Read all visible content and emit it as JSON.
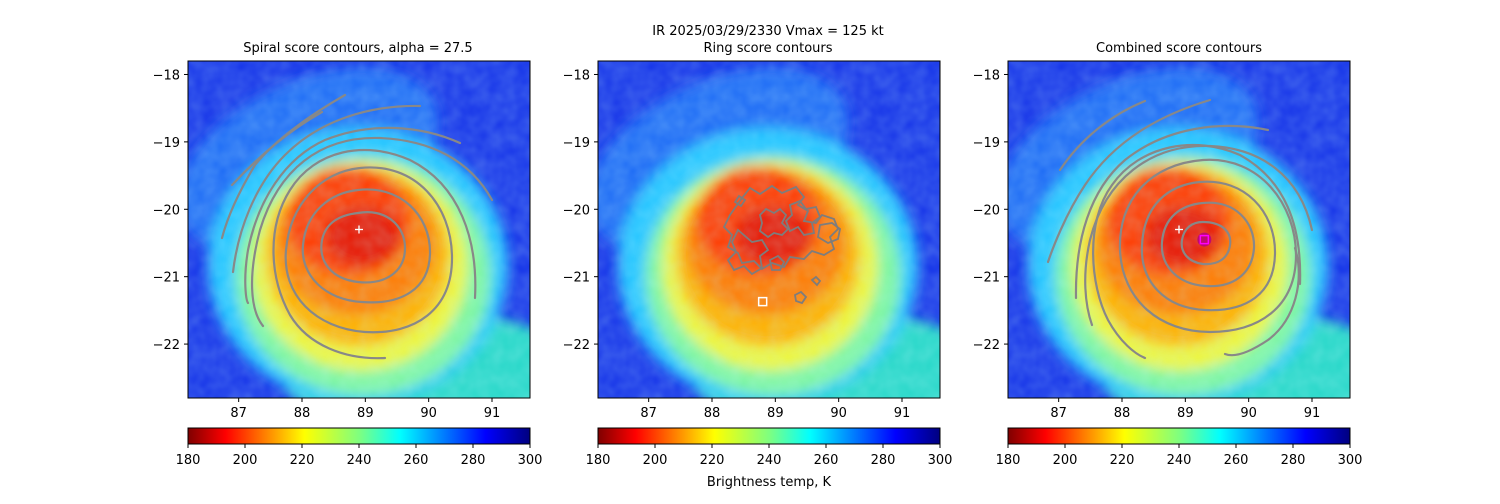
{
  "figure": {
    "suptitle": "IR  2025/03/29/2330    Vmax = 125 kt",
    "colorbar_label": "Brightness temp, K"
  },
  "colors": {
    "contour": "#888888",
    "marker_white": "#ffffff",
    "marker_magenta": "#ff00ff"
  },
  "chart_data": [
    {
      "type": "heatmap",
      "title": "Spiral score contours, alpha = 27.5",
      "colormap": "jet_r",
      "xlim": [
        86.2,
        91.6
      ],
      "ylim": [
        -22.8,
        -17.8
      ],
      "xticks": [
        87,
        88,
        89,
        90,
        91
      ],
      "yticks": [
        -18,
        -19,
        -20,
        -21,
        -22
      ],
      "xtick_labels": [
        "87",
        "88",
        "89",
        "90",
        "91"
      ],
      "ytick_labels": [
        "−18",
        "−19",
        "−20",
        "−21",
        "−22"
      ],
      "colorbar": {
        "min": 180,
        "max": 300,
        "ticks": [
          180,
          200,
          220,
          240,
          260,
          280,
          300
        ],
        "tick_labels": [
          "180",
          "200",
          "220",
          "240",
          "260",
          "280",
          "300"
        ]
      },
      "markers": [
        {
          "kind": "plus",
          "lon": 88.9,
          "lat": -20.3,
          "color": "white"
        }
      ]
    },
    {
      "type": "heatmap",
      "title": "Ring score contours",
      "colormap": "jet_r",
      "xlim": [
        86.2,
        91.6
      ],
      "ylim": [
        -22.8,
        -17.8
      ],
      "xticks": [
        87,
        88,
        89,
        90,
        91
      ],
      "yticks": [
        -18,
        -19,
        -20,
        -21,
        -22
      ],
      "xtick_labels": [
        "87",
        "88",
        "89",
        "90",
        "91"
      ],
      "ytick_labels": [
        "−18",
        "−19",
        "−20",
        "−21",
        "−22"
      ],
      "colorbar": {
        "min": 180,
        "max": 300,
        "ticks": [
          180,
          200,
          220,
          240,
          260,
          280,
          300
        ],
        "tick_labels": [
          "180",
          "200",
          "220",
          "240",
          "260",
          "280",
          "300"
        ]
      },
      "markers": [
        {
          "kind": "square",
          "lon": 88.8,
          "lat": -21.37,
          "color": "white"
        }
      ]
    },
    {
      "type": "heatmap",
      "title": "Combined score contours",
      "colormap": "jet_r",
      "xlim": [
        86.2,
        91.6
      ],
      "ylim": [
        -22.8,
        -17.8
      ],
      "xticks": [
        87,
        88,
        89,
        90,
        91
      ],
      "yticks": [
        -18,
        -19,
        -20,
        -21,
        -22
      ],
      "xtick_labels": [
        "87",
        "88",
        "89",
        "90",
        "91"
      ],
      "ytick_labels": [
        "−18",
        "−19",
        "−20",
        "−21",
        "−22"
      ],
      "colorbar": {
        "min": 180,
        "max": 300,
        "ticks": [
          180,
          200,
          220,
          240,
          260,
          280,
          300
        ],
        "tick_labels": [
          "180",
          "200",
          "220",
          "240",
          "260",
          "280",
          "300"
        ]
      },
      "markers": [
        {
          "kind": "plus",
          "lon": 88.9,
          "lat": -20.3,
          "color": "white"
        },
        {
          "kind": "square",
          "lon": 89.3,
          "lat": -20.45,
          "color": "magenta"
        }
      ]
    }
  ]
}
